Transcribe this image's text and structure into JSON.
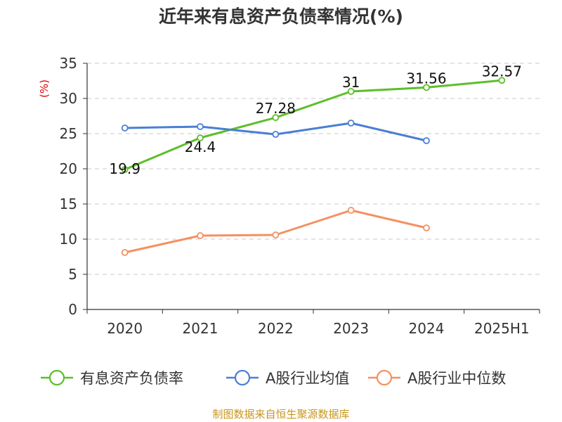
{
  "chart_data": {
    "type": "line",
    "title": "近年来有息资产负债率情况(%)",
    "xlabel": "",
    "ylabel": "(%)",
    "categories": [
      "2020",
      "2021",
      "2022",
      "2023",
      "2024",
      "2025H1"
    ],
    "ylim": [
      0,
      35
    ],
    "yticks": [
      "0",
      "5",
      "10",
      "15",
      "20",
      "25",
      "30",
      "35"
    ],
    "grid": true,
    "legend_position": "bottom",
    "series": [
      {
        "name": "有息资产负债率",
        "color": "#5cbf2a",
        "values": [
          19.9,
          24.4,
          27.28,
          31,
          31.56,
          32.57
        ],
        "labels": [
          "19.9",
          "24.4",
          "27.28",
          "31",
          "31.56",
          "32.57"
        ]
      },
      {
        "name": "A股行业均值",
        "color": "#4a7fd4",
        "values": [
          25.8,
          26.0,
          24.9,
          26.5,
          24.0,
          null
        ]
      },
      {
        "name": "A股行业中位数",
        "color": "#f59060",
        "values": [
          8.1,
          10.5,
          10.6,
          14.1,
          11.6,
          null
        ]
      }
    ]
  },
  "footer": "制图数据来自恒生聚源数据库"
}
